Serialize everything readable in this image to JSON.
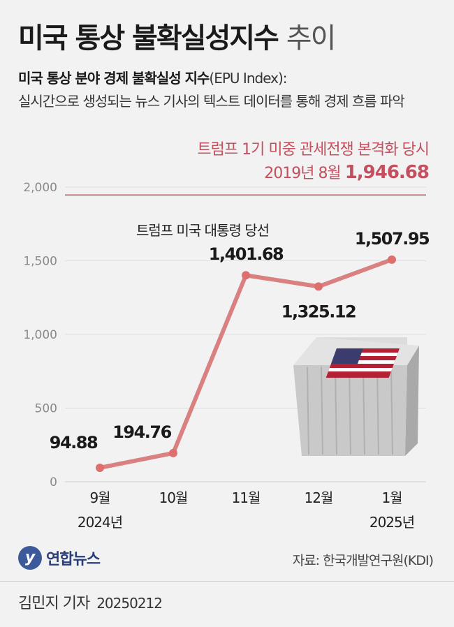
{
  "title_main": "미국 통상 불확실성지수",
  "title_sub": "추이",
  "subtitle_bold": "미국 통상 분야 경제 불확실성 지수",
  "subtitle_paren": "(EPU Index):",
  "subtitle_rest": "실시간으로 생성되는 뉴스 기사의 텍스트 데이터를 통해 경제 흐름 파악",
  "note_line1": "트럼프 1기 미중 관세전쟁 본격화 당시",
  "note_date": "2019년 8월",
  "note_value": "1,946.68",
  "annotation": "트럼프 미국 대통령 당선",
  "source": "자료: 한국개발연구원(KDI)",
  "agency": "연합뉴스",
  "agency_logo_letter": "y",
  "byline": "김민지 기자",
  "byline_date": "20250212",
  "colors": {
    "line": "#d98080",
    "point": "#de6f6f",
    "ref": "#c4505f",
    "grid": "#dedede",
    "background": "#f2f2f2"
  },
  "icon": "us-flag-shipping-container-icon",
  "chart_data": {
    "type": "line",
    "categories": [
      "9월",
      "10월",
      "11월",
      "12월",
      "1월"
    ],
    "category_years": [
      "2024년",
      "",
      "",
      "",
      "2025년"
    ],
    "values": [
      94.88,
      194.76,
      1401.68,
      1325.12,
      1507.95
    ],
    "value_labels": [
      "94.88",
      "194.76",
      "1,401.68",
      "1,325.12",
      "1,507.95"
    ],
    "ylim": [
      0,
      2000
    ],
    "yticks": [
      0,
      500,
      1000,
      1500,
      2000
    ],
    "ytick_labels": [
      "0",
      "500",
      "1,000",
      "1,500",
      "2,000"
    ],
    "reference_value": 1946.68,
    "grid": true,
    "xlabel": "",
    "ylabel": ""
  }
}
